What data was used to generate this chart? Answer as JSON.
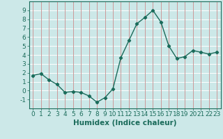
{
  "x": [
    0,
    1,
    2,
    3,
    4,
    5,
    6,
    7,
    8,
    9,
    10,
    11,
    12,
    13,
    14,
    15,
    16,
    17,
    18,
    19,
    20,
    21,
    22,
    23
  ],
  "y": [
    1.7,
    1.9,
    1.2,
    0.7,
    -0.2,
    -0.1,
    -0.2,
    -0.6,
    -1.3,
    -0.8,
    0.2,
    3.7,
    5.6,
    7.5,
    8.2,
    9.0,
    7.7,
    5.0,
    3.6,
    3.8,
    4.5,
    4.3,
    4.1,
    4.3
  ],
  "line_color": "#1a6b5a",
  "marker": "D",
  "marker_size": 2.2,
  "bg_color": "#cce8e8",
  "grid_color": "#ffffff",
  "grid_major_color": "#cc9999",
  "xlabel": "Humidex (Indice chaleur)",
  "ylim": [
    -2,
    10
  ],
  "xlim": [
    -0.5,
    23.5
  ],
  "yticks": [
    -1,
    0,
    1,
    2,
    3,
    4,
    5,
    6,
    7,
    8,
    9
  ],
  "xticks": [
    0,
    1,
    2,
    3,
    4,
    5,
    6,
    7,
    8,
    9,
    10,
    11,
    12,
    13,
    14,
    15,
    16,
    17,
    18,
    19,
    20,
    21,
    22,
    23
  ],
  "xlabel_fontsize": 7.5,
  "tick_fontsize": 6.5,
  "label_color": "#1a6b5a",
  "spine_color": "#1a6b5a"
}
